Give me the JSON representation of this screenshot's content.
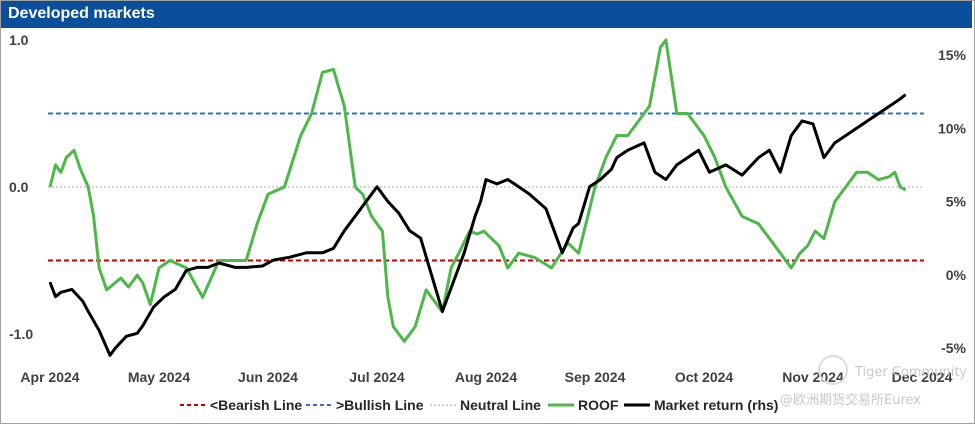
{
  "chart_data": {
    "type": "line",
    "title": "Developed markets",
    "x_tick_labels": [
      "Apr 2024",
      "May 2024",
      "Jun 2024",
      "Jul 2024",
      "Aug 2024",
      "Sep 2024",
      "Oct 2024",
      "Nov 2024",
      "Dec 2024"
    ],
    "y_left": {
      "ylim": [
        -1.1,
        1.0
      ],
      "tick_labels": [
        "1.0",
        "0.0",
        "-1.0"
      ],
      "tick_values": [
        1.0,
        0.0,
        -1.0
      ]
    },
    "y_right": {
      "ylim": [
        -5,
        15
      ],
      "tick_labels": [
        "15%",
        "10%",
        "5%",
        "0%",
        "-5%"
      ],
      "tick_values": [
        15,
        10,
        5,
        0,
        -5
      ]
    },
    "reference_lines": [
      {
        "name": "<Bearish Line",
        "value": -0.5,
        "color": "#c00000",
        "style": "dashed"
      },
      {
        "name": ">Bullish Line",
        "value": 0.5,
        "color": "#2e75b6",
        "style": "dashed"
      },
      {
        "name": "Neutral Line",
        "value": 0.0,
        "color": "#bfbfbf",
        "style": "dotted"
      }
    ],
    "series": [
      {
        "name": "ROOF",
        "axis": "left",
        "color": "#4cb848",
        "x": [
          0,
          0.05,
          0.1,
          0.15,
          0.22,
          0.28,
          0.35,
          0.4,
          0.45,
          0.52,
          0.6,
          0.65,
          0.72,
          0.8,
          0.85,
          0.92,
          1.0,
          1.1,
          1.25,
          1.4,
          1.55,
          1.65,
          1.8,
          1.9,
          2.0,
          2.15,
          2.3,
          2.4,
          2.5,
          2.6,
          2.7,
          2.8,
          2.87,
          2.95,
          3.05,
          3.1,
          3.15,
          3.25,
          3.35,
          3.45,
          3.5,
          3.6,
          3.68,
          3.75,
          3.85,
          3.92,
          3.98,
          4.05,
          4.12,
          4.2,
          4.3,
          4.45,
          4.6,
          4.75,
          4.85,
          4.9,
          5.0,
          5.1,
          5.2,
          5.3,
          5.4,
          5.5,
          5.6,
          5.65,
          5.75,
          5.85,
          6.0,
          6.1,
          6.2,
          6.35,
          6.5,
          6.65,
          6.75,
          6.8,
          6.88,
          6.95,
          7.02,
          7.1,
          7.2,
          7.3,
          7.4,
          7.5,
          7.6,
          7.7,
          7.75,
          7.8,
          7.85
        ],
        "y": [
          0.0,
          0.15,
          0.1,
          0.2,
          0.25,
          0.12,
          0.0,
          -0.2,
          -0.55,
          -0.7,
          -0.65,
          -0.62,
          -0.68,
          -0.6,
          -0.65,
          -0.8,
          -0.55,
          -0.5,
          -0.55,
          -0.75,
          -0.5,
          -0.5,
          -0.5,
          -0.25,
          -0.05,
          0.0,
          0.35,
          0.5,
          0.78,
          0.8,
          0.55,
          0.0,
          -0.05,
          -0.2,
          -0.3,
          -0.75,
          -0.95,
          -1.05,
          -0.95,
          -0.7,
          -0.75,
          -0.85,
          -0.55,
          -0.45,
          -0.3,
          -0.32,
          -0.3,
          -0.35,
          -0.4,
          -0.55,
          -0.45,
          -0.48,
          -0.55,
          -0.38,
          -0.45,
          -0.3,
          0.0,
          0.2,
          0.35,
          0.35,
          0.45,
          0.55,
          0.95,
          1.0,
          0.5,
          0.5,
          0.35,
          0.2,
          0.0,
          -0.2,
          -0.25,
          -0.4,
          -0.5,
          -0.55,
          -0.45,
          -0.4,
          -0.3,
          -0.35,
          -0.1,
          0.0,
          0.1,
          0.1,
          0.05,
          0.07,
          0.1,
          0.0,
          -0.02
        ]
      },
      {
        "name": "Market return (rhs)",
        "axis": "right",
        "color": "#000000",
        "x": [
          0,
          0.05,
          0.1,
          0.2,
          0.3,
          0.35,
          0.45,
          0.55,
          0.6,
          0.7,
          0.8,
          0.85,
          0.95,
          1.05,
          1.15,
          1.25,
          1.35,
          1.45,
          1.55,
          1.7,
          1.8,
          1.95,
          2.05,
          2.2,
          2.35,
          2.5,
          2.6,
          2.7,
          2.8,
          2.9,
          3.0,
          3.1,
          3.2,
          3.3,
          3.4,
          3.5,
          3.6,
          3.7,
          3.8,
          3.9,
          3.95,
          4.0,
          4.1,
          4.2,
          4.3,
          4.4,
          4.55,
          4.7,
          4.8,
          4.85,
          4.95,
          5.05,
          5.15,
          5.2,
          5.3,
          5.45,
          5.55,
          5.65,
          5.75,
          5.85,
          5.95,
          6.05,
          6.2,
          6.35,
          6.5,
          6.6,
          6.7,
          6.8,
          6.9,
          7.0,
          7.1,
          7.2,
          7.3,
          7.4,
          7.5,
          7.6,
          7.7,
          7.8,
          7.85
        ],
        "y": [
          -0.5,
          -1.5,
          -1.2,
          -1.0,
          -1.8,
          -2.5,
          -3.8,
          -5.5,
          -5.0,
          -4.2,
          -4.0,
          -3.5,
          -2.2,
          -1.5,
          -1.0,
          0.3,
          0.5,
          0.5,
          0.8,
          0.5,
          0.5,
          0.6,
          1.0,
          1.2,
          1.5,
          1.5,
          1.8,
          3.0,
          4.0,
          5.0,
          6.0,
          5.0,
          4.2,
          3.0,
          2.5,
          0.0,
          -2.5,
          -0.5,
          1.5,
          4.0,
          5.0,
          6.5,
          6.2,
          6.5,
          6.0,
          5.5,
          4.5,
          1.5,
          3.2,
          3.5,
          6.0,
          6.5,
          7.2,
          8.0,
          8.5,
          9.0,
          7.0,
          6.5,
          7.5,
          8.0,
          8.5,
          7.0,
          7.5,
          6.8,
          8.0,
          8.5,
          7.0,
          9.5,
          10.5,
          10.3,
          8.0,
          9.0,
          9.5,
          10.0,
          10.5,
          11.0,
          11.5,
          12.0,
          12.3
        ]
      }
    ]
  },
  "legend": {
    "bearish": "<Bearish Line",
    "bullish": ">Bullish Line",
    "neutral": "Neutral Line",
    "roof": "ROOF",
    "market": "Market return (rhs)"
  },
  "watermark": {
    "community": "Tiger Community",
    "handle": "@欧洲期货交易所Eurex"
  },
  "colors": {
    "title_bg": "#0b4f9c",
    "bearish": "#c00000",
    "bullish": "#2e75b6",
    "neutral": "#bfbfbf",
    "roof": "#4cb848",
    "market": "#000000"
  }
}
